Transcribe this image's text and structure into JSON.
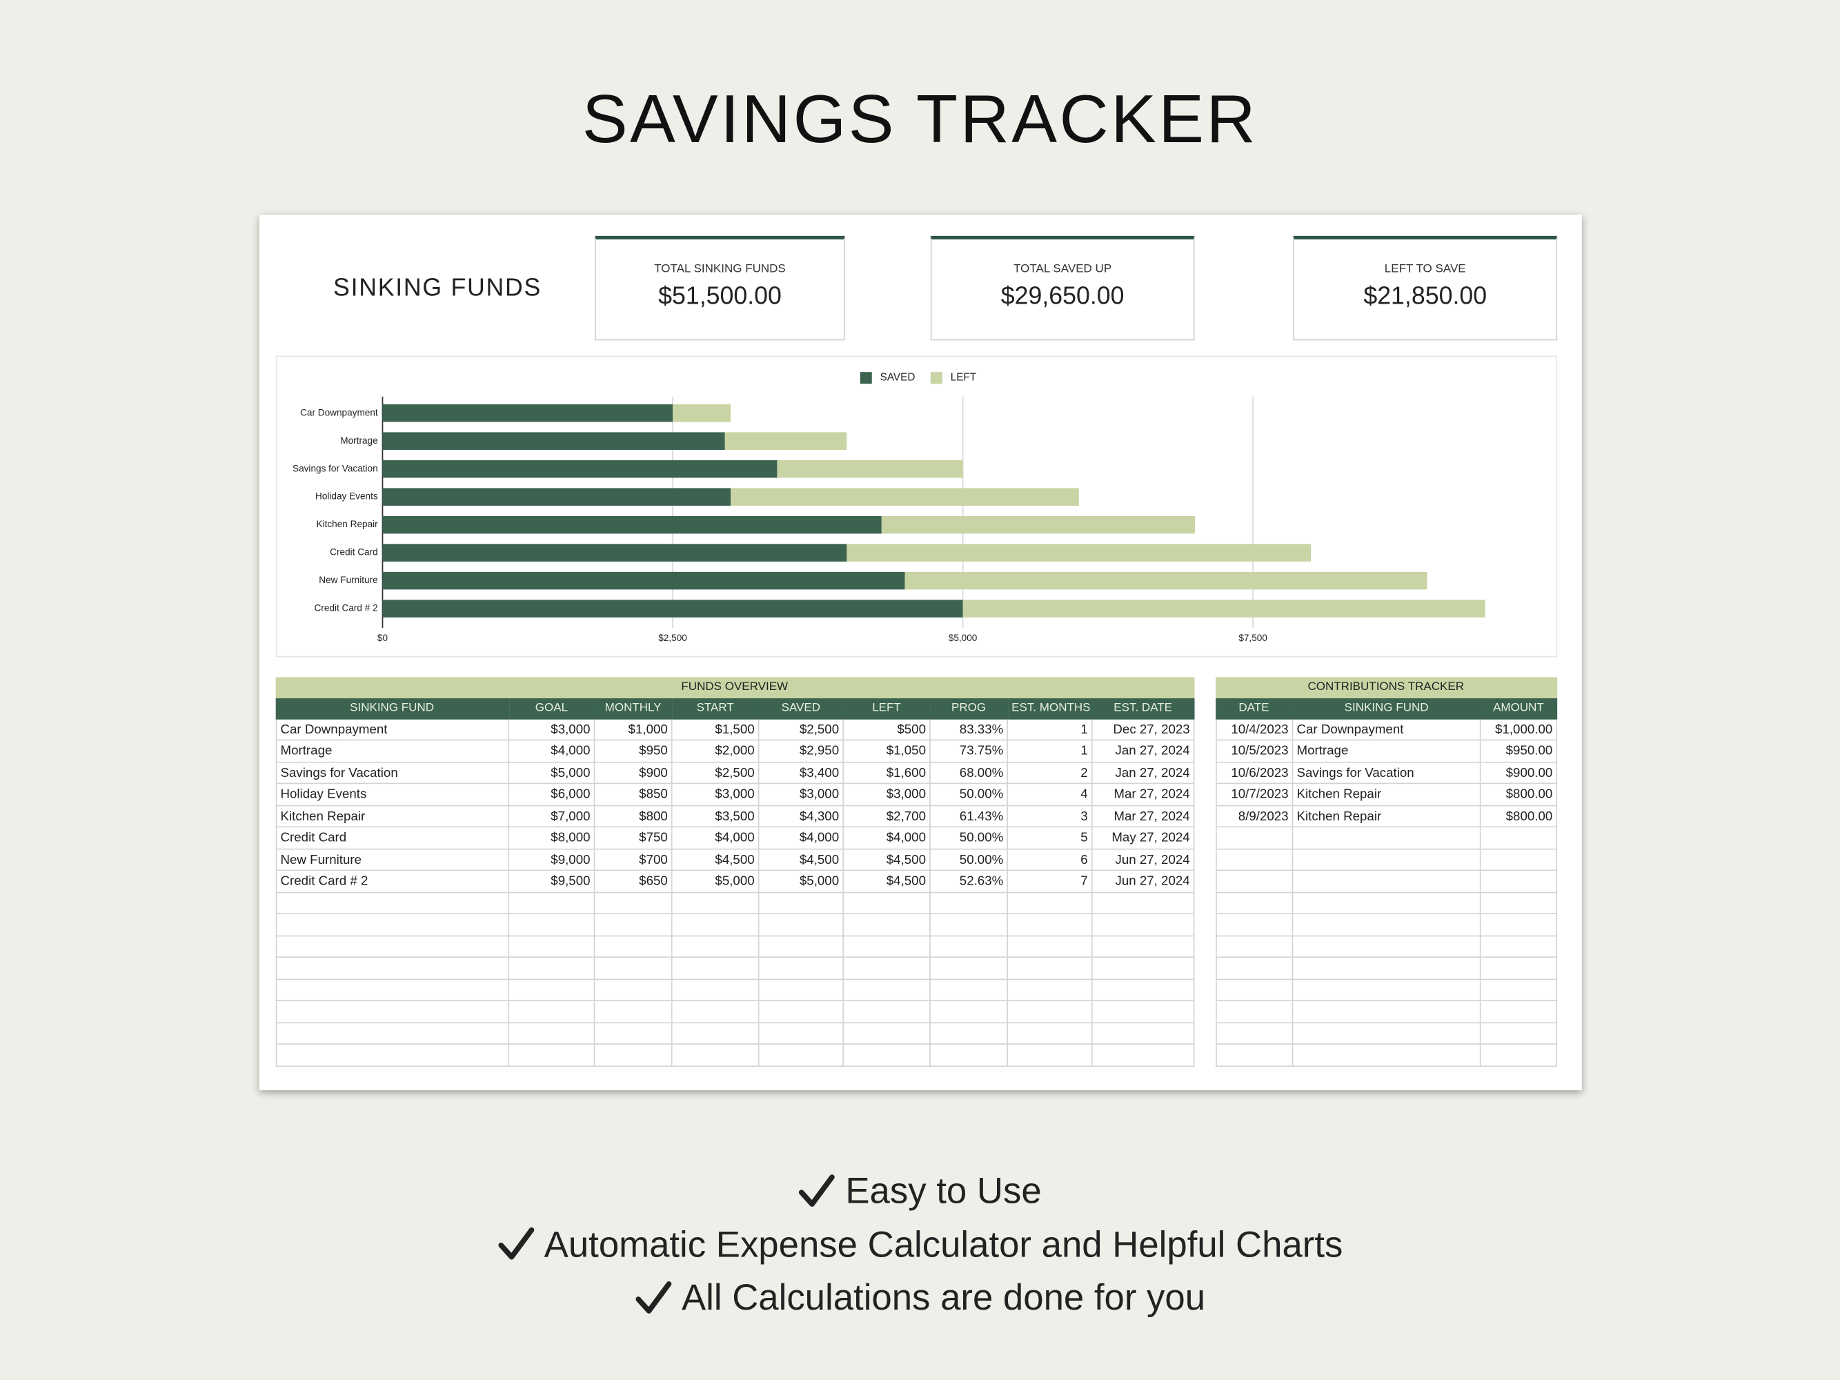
{
  "title": "SAVINGS TRACKER",
  "dashboard": {
    "heading": "SINKING FUNDS",
    "kpis": [
      {
        "label": "TOTAL SINKING FUNDS",
        "value": "$51,500.00"
      },
      {
        "label": "TOTAL SAVED UP",
        "value": "$29,650.00"
      },
      {
        "label": "LEFT TO SAVE",
        "value": "$21,850.00"
      }
    ]
  },
  "chart_data": {
    "type": "bar",
    "orientation": "horizontal",
    "stacked": true,
    "categories": [
      "Car Downpayment",
      "Mortrage",
      "Savings for Vacation",
      "Holiday Events",
      "Kitchen Repair",
      "Credit Card",
      "New Furniture",
      "Credit Card # 2"
    ],
    "series": [
      {
        "name": "SAVED",
        "color": "#3b6350",
        "values": [
          2500,
          2950,
          3400,
          3000,
          4300,
          4000,
          4500,
          5000
        ]
      },
      {
        "name": "LEFT",
        "color": "#c9d4a4",
        "values": [
          500,
          1050,
          1600,
          3000,
          2700,
          4000,
          4500,
          4500
        ]
      }
    ],
    "xlim": [
      0,
      10000
    ],
    "xticks": [
      {
        "value": 0,
        "label": "$0"
      },
      {
        "value": 2500,
        "label": "$2,500"
      },
      {
        "value": 5000,
        "label": "$5,000"
      },
      {
        "value": 7500,
        "label": "$7,500"
      }
    ],
    "grid": true,
    "legend": "top"
  },
  "funds_overview": {
    "title": "FUNDS OVERVIEW",
    "headers": [
      "SINKING FUND",
      "GOAL",
      "MONTHLY",
      "START",
      "SAVED",
      "LEFT",
      "PROG",
      "EST. MONTHS",
      "EST. DATE"
    ],
    "rows": [
      [
        "Car Downpayment",
        "$3,000",
        "$1,000",
        "$1,500",
        "$2,500",
        "$500",
        "83.33%",
        "1",
        "Dec 27, 2023"
      ],
      [
        "Mortrage",
        "$4,000",
        "$950",
        "$2,000",
        "$2,950",
        "$1,050",
        "73.75%",
        "1",
        "Jan 27, 2024"
      ],
      [
        "Savings for Vacation",
        "$5,000",
        "$900",
        "$2,500",
        "$3,400",
        "$1,600",
        "68.00%",
        "2",
        "Jan 27, 2024"
      ],
      [
        "Holiday Events",
        "$6,000",
        "$850",
        "$3,000",
        "$3,000",
        "$3,000",
        "50.00%",
        "4",
        "Mar 27, 2024"
      ],
      [
        "Kitchen Repair",
        "$7,000",
        "$800",
        "$3,500",
        "$4,300",
        "$2,700",
        "61.43%",
        "3",
        "Mar 27, 2024"
      ],
      [
        "Credit Card",
        "$8,000",
        "$750",
        "$4,000",
        "$4,000",
        "$4,000",
        "50.00%",
        "5",
        "May 27, 2024"
      ],
      [
        "New Furniture",
        "$9,000",
        "$700",
        "$4,500",
        "$4,500",
        "$4,500",
        "50.00%",
        "6",
        "Jun 27, 2024"
      ],
      [
        "Credit Card # 2",
        "$9,500",
        "$650",
        "$5,000",
        "$5,000",
        "$4,500",
        "52.63%",
        "7",
        "Jun 27, 2024"
      ]
    ]
  },
  "contributions": {
    "title": "CONTRIBUTIONS TRACKER",
    "headers": [
      "DATE",
      "SINKING FUND",
      "AMOUNT"
    ],
    "rows": [
      [
        "10/4/2023",
        "Car Downpayment",
        "$1,000.00"
      ],
      [
        "10/5/2023",
        "Mortrage",
        "$950.00"
      ],
      [
        "10/6/2023",
        "Savings for Vacation",
        "$900.00"
      ],
      [
        "10/7/2023",
        "Kitchen Repair",
        "$800.00"
      ],
      [
        "8/9/2023",
        "Kitchen Repair",
        "$800.00"
      ]
    ]
  },
  "features": [
    "Easy to Use",
    "Automatic Expense Calculator and Helpful Charts",
    "All Calculations are done for you"
  ]
}
